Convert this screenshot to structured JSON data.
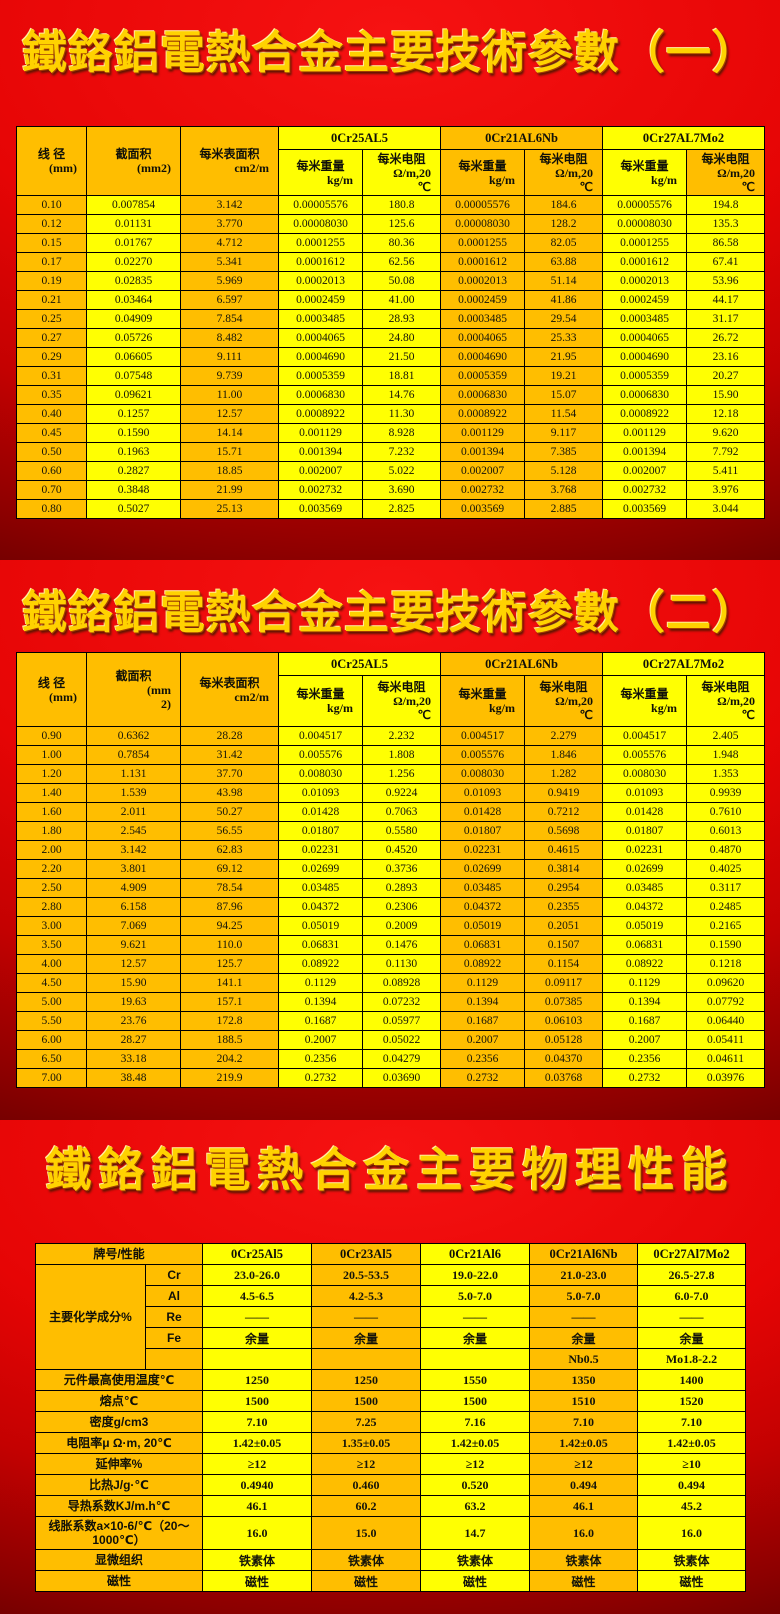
{
  "colors": {
    "orange": "#ffbe00",
    "yellow": "#ffff02",
    "background_red": "#e60505",
    "background_dark": "#520000",
    "title_gold": "#ffd200",
    "border": "#000000"
  },
  "section1": {
    "title": "鐵鉻鋁電熱合金主要技術參數（一）",
    "table": {
      "left_headers": [
        [
          "线 径",
          "(mm)"
        ],
        [
          "截面积",
          "(mm2)"
        ],
        [
          "每米表面积",
          "cm2/m"
        ]
      ],
      "alloys": [
        "0Cr25AL5",
        "0Cr21AL6Nb",
        "0Cr27AL7Mo2"
      ],
      "sub_weight": [
        "每米重量",
        "kg/m"
      ],
      "sub_res": [
        "每米电阻",
        "Ω/m,20",
        "℃"
      ],
      "band_colors": [
        "Y",
        "O",
        "Y"
      ],
      "sub_colors": [
        "Y",
        "Y",
        "O",
        "O",
        "Y",
        "O"
      ],
      "col_colors": [
        "O",
        "Y",
        "O",
        "Y",
        "Y",
        "O",
        "O",
        "Y",
        "Y"
      ],
      "rows": [
        [
          "0.10",
          "0.007854",
          "3.142",
          "0.00005576",
          "180.8",
          "0.00005576",
          "184.6",
          "0.00005576",
          "194.8"
        ],
        [
          "0.12",
          "0.01131",
          "3.770",
          "0.00008030",
          "125.6",
          "0.00008030",
          "128.2",
          "0.00008030",
          "135.3"
        ],
        [
          "0.15",
          "0.01767",
          "4.712",
          "0.0001255",
          "80.36",
          "0.0001255",
          "82.05",
          "0.0001255",
          "86.58"
        ],
        [
          "0.17",
          "0.02270",
          "5.341",
          "0.0001612",
          "62.56",
          "0.0001612",
          "63.88",
          "0.0001612",
          "67.41"
        ],
        [
          "0.19",
          "0.02835",
          "5.969",
          "0.0002013",
          "50.08",
          "0.0002013",
          "51.14",
          "0.0002013",
          "53.96"
        ],
        [
          "0.21",
          "0.03464",
          "6.597",
          "0.0002459",
          "41.00",
          "0.0002459",
          "41.86",
          "0.0002459",
          "44.17"
        ],
        [
          "0.25",
          "0.04909",
          "7.854",
          "0.0003485",
          "28.93",
          "0.0003485",
          "29.54",
          "0.0003485",
          "31.17"
        ],
        [
          "0.27",
          "0.05726",
          "8.482",
          "0.0004065",
          "24.80",
          "0.0004065",
          "25.33",
          "0.0004065",
          "26.72"
        ],
        [
          "0.29",
          "0.06605",
          "9.111",
          "0.0004690",
          "21.50",
          "0.0004690",
          "21.95",
          "0.0004690",
          "23.16"
        ],
        [
          "0.31",
          "0.07548",
          "9.739",
          "0.0005359",
          "18.81",
          "0.0005359",
          "19.21",
          "0.0005359",
          "20.27"
        ],
        [
          "0.35",
          "0.09621",
          "11.00",
          "0.0006830",
          "14.76",
          "0.0006830",
          "15.07",
          "0.0006830",
          "15.90"
        ],
        [
          "0.40",
          "0.1257",
          "12.57",
          "0.0008922",
          "11.30",
          "0.0008922",
          "11.54",
          "0.0008922",
          "12.18"
        ],
        [
          "0.45",
          "0.1590",
          "14.14",
          "0.001129",
          "8.928",
          "0.001129",
          "9.117",
          "0.001129",
          "9.620"
        ],
        [
          "0.50",
          "0.1963",
          "15.71",
          "0.001394",
          "7.232",
          "0.001394",
          "7.385",
          "0.001394",
          "7.792"
        ],
        [
          "0.60",
          "0.2827",
          "18.85",
          "0.002007",
          "5.022",
          "0.002007",
          "5.128",
          "0.002007",
          "5.411"
        ],
        [
          "0.70",
          "0.3848",
          "21.99",
          "0.002732",
          "3.690",
          "0.002732",
          "3.768",
          "0.002732",
          "3.976"
        ],
        [
          "0.80",
          "0.5027",
          "25.13",
          "0.003569",
          "2.825",
          "0.003569",
          "2.885",
          "0.003569",
          "3.044"
        ]
      ]
    }
  },
  "section2": {
    "title": "鐵鉻鋁電熱合金主要技術參數（二）",
    "table": {
      "left_headers": [
        [
          "线 径",
          "(mm)"
        ],
        [
          "截面积",
          "(mm",
          "2)"
        ],
        [
          "每米表面积",
          "cm2/m"
        ]
      ],
      "alloys": [
        "0Cr25AL5",
        "0Cr21AL6Nb",
        "0Cr27AL7Mo2"
      ],
      "sub_weight": [
        "每米重量",
        "kg/m"
      ],
      "sub_res": [
        "每米电阻",
        "Ω/m,20",
        "℃"
      ],
      "band_colors": [
        "Y",
        "O",
        "Y"
      ],
      "sub_colors": [
        "Y",
        "Y",
        "O",
        "O",
        "Y",
        "Y"
      ],
      "col_colors": [
        "O",
        "O",
        "O",
        "Y",
        "Y",
        "O",
        "O",
        "Y",
        "Y"
      ],
      "rows": [
        [
          "0.90",
          "0.6362",
          "28.28",
          "0.004517",
          "2.232",
          "0.004517",
          "2.279",
          "0.004517",
          "2.405"
        ],
        [
          "1.00",
          "0.7854",
          "31.42",
          "0.005576",
          "1.808",
          "0.005576",
          "1.846",
          "0.005576",
          "1.948"
        ],
        [
          "1.20",
          "1.131",
          "37.70",
          "0.008030",
          "1.256",
          "0.008030",
          "1.282",
          "0.008030",
          "1.353"
        ],
        [
          "1.40",
          "1.539",
          "43.98",
          "0.01093",
          "0.9224",
          "0.01093",
          "0.9419",
          "0.01093",
          "0.9939"
        ],
        [
          "1.60",
          "2.011",
          "50.27",
          "0.01428",
          "0.7063",
          "0.01428",
          "0.7212",
          "0.01428",
          "0.7610"
        ],
        [
          "1.80",
          "2.545",
          "56.55",
          "0.01807",
          "0.5580",
          "0.01807",
          "0.5698",
          "0.01807",
          "0.6013"
        ],
        [
          "2.00",
          "3.142",
          "62.83",
          "0.02231",
          "0.4520",
          "0.02231",
          "0.4615",
          "0.02231",
          "0.4870"
        ],
        [
          "2.20",
          "3.801",
          "69.12",
          "0.02699",
          "0.3736",
          "0.02699",
          "0.3814",
          "0.02699",
          "0.4025"
        ],
        [
          "2.50",
          "4.909",
          "78.54",
          "0.03485",
          "0.2893",
          "0.03485",
          "0.2954",
          "0.03485",
          "0.3117"
        ],
        [
          "2.80",
          "6.158",
          "87.96",
          "0.04372",
          "0.2306",
          "0.04372",
          "0.2355",
          "0.04372",
          "0.2485"
        ],
        [
          "3.00",
          "7.069",
          "94.25",
          "0.05019",
          "0.2009",
          "0.05019",
          "0.2051",
          "0.05019",
          "0.2165"
        ],
        [
          "3.50",
          "9.621",
          "110.0",
          "0.06831",
          "0.1476",
          "0.06831",
          "0.1507",
          "0.06831",
          "0.1590"
        ],
        [
          "4.00",
          "12.57",
          "125.7",
          "0.08922",
          "0.1130",
          "0.08922",
          "0.1154",
          "0.08922",
          "0.1218"
        ],
        [
          "4.50",
          "15.90",
          "141.1",
          "0.1129",
          "0.08928",
          "0.1129",
          "0.09117",
          "0.1129",
          "0.09620"
        ],
        [
          "5.00",
          "19.63",
          "157.1",
          "0.1394",
          "0.07232",
          "0.1394",
          "0.07385",
          "0.1394",
          "0.07792"
        ],
        [
          "5.50",
          "23.76",
          "172.8",
          "0.1687",
          "0.05977",
          "0.1687",
          "0.06103",
          "0.1687",
          "0.06440"
        ],
        [
          "6.00",
          "28.27",
          "188.5",
          "0.2007",
          "0.05022",
          "0.2007",
          "0.05128",
          "0.2007",
          "0.05411"
        ],
        [
          "6.50",
          "33.18",
          "204.2",
          "0.2356",
          "0.04279",
          "0.2356",
          "0.04370",
          "0.2356",
          "0.04611"
        ],
        [
          "7.00",
          "38.48",
          "219.9",
          "0.2732",
          "0.03690",
          "0.2732",
          "0.03768",
          "0.2732",
          "0.03976"
        ]
      ]
    }
  },
  "section3": {
    "title": "鐵鉻鋁電熱合金主要物理性能",
    "table": {
      "header_label": "牌号/性能",
      "alloys": [
        "0Cr25Al5",
        "0Cr23Al5",
        "0Cr21Al6",
        "0Cr21Al6Nb",
        "0Cr27Al7Mo2"
      ],
      "col_colors": [
        "Y",
        "O",
        "Y",
        "O",
        "Y"
      ],
      "chem_label": "主要化学成分%",
      "chem_rows": [
        {
          "sub": "Cr",
          "values": [
            "23.0-26.0",
            "20.5-53.5",
            "19.0-22.0",
            "21.0-23.0",
            "26.5-27.8"
          ]
        },
        {
          "sub": "Al",
          "values": [
            "4.5-6.5",
            "4.2-5.3",
            "5.0-7.0",
            "5.0-7.0",
            "6.0-7.0"
          ]
        },
        {
          "sub": "Re",
          "values": [
            "——",
            "——",
            "——",
            "——",
            "——"
          ]
        },
        {
          "sub": "Fe",
          "values": [
            "余量",
            "余量",
            "余量",
            "余量",
            "余量"
          ]
        },
        {
          "sub": "",
          "values": [
            "",
            "",
            "",
            "Nb0.5",
            "Mo1.8-2.2"
          ]
        }
      ],
      "prop_rows": [
        {
          "label": "元件最高使用温度℃",
          "values": [
            "1250",
            "1250",
            "1550",
            "1350",
            "1400"
          ]
        },
        {
          "label": "熔点℃",
          "values": [
            "1500",
            "1500",
            "1500",
            "1510",
            "1520"
          ]
        },
        {
          "label": "密度g/cm3",
          "values": [
            "7.10",
            "7.25",
            "7.16",
            "7.10",
            "7.10"
          ]
        },
        {
          "label": "电阻率μ Ω·m, 20℃",
          "values": [
            "1.42±0.05",
            "1.35±0.05",
            "1.42±0.05",
            "1.42±0.05",
            "1.42±0.05"
          ]
        },
        {
          "label": "延伸率%",
          "values": [
            "≥12",
            "≥12",
            "≥12",
            "≥12",
            "≥10"
          ]
        },
        {
          "label": "比热J/g·℃",
          "values": [
            "0.4940",
            "0.460",
            "0.520",
            "0.494",
            "0.494"
          ]
        },
        {
          "label": "导热系数KJ/m.h℃",
          "values": [
            "46.1",
            "60.2",
            "63.2",
            "46.1",
            "45.2"
          ]
        },
        {
          "label": "线胀系数a×10-6/℃（20～1000℃）",
          "values": [
            "16.0",
            "15.0",
            "14.7",
            "16.0",
            "16.0"
          ]
        },
        {
          "label": "显微组织",
          "values": [
            "铁素体",
            "铁素体",
            "铁素体",
            "铁素体",
            "铁素体"
          ]
        },
        {
          "label": "磁性",
          "values": [
            "磁性",
            "磁性",
            "磁性",
            "磁性",
            "磁性"
          ]
        }
      ]
    }
  }
}
